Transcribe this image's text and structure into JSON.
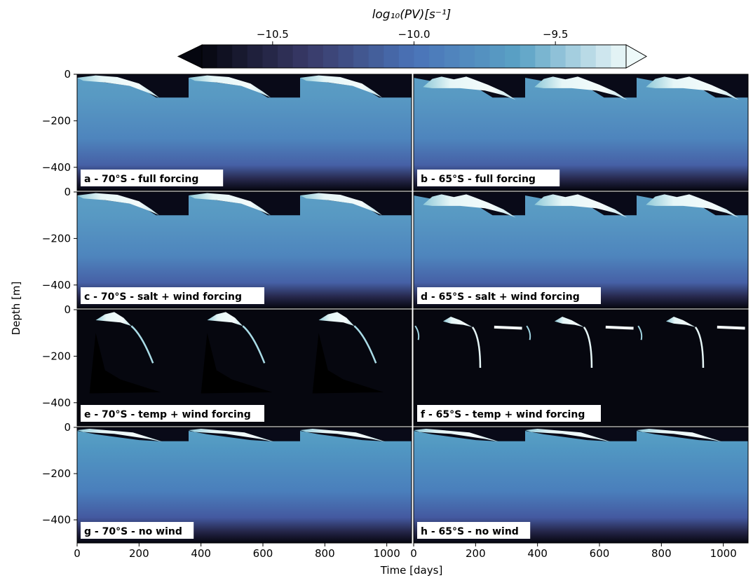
{
  "chart_data": {
    "type": "heatmap",
    "colorbar": {
      "label": "log₁₀(PV)[s⁻¹]",
      "range": [
        -10.75,
        -9.25
      ],
      "extend": "both",
      "ticks": [
        -10.5,
        -10.0,
        -9.5
      ],
      "tick_labels": [
        "−10.5",
        "−10.0",
        "−9.5"
      ],
      "colors": [
        "#05060f",
        "#393a68",
        "#4a73b8",
        "#5aa2c5",
        "#eef9f9"
      ]
    },
    "xlabel": "Time [days]",
    "ylabel": "Depth [m]",
    "xlim": [
      0,
      1080
    ],
    "ylim": [
      -500,
      0
    ],
    "xticks": [
      0,
      200,
      400,
      600,
      800,
      1000
    ],
    "xtick_labels": [
      "0",
      "200",
      "400",
      "600",
      "800",
      "1000"
    ],
    "yticks": [
      0,
      -200,
      -400
    ],
    "ytick_labels": [
      "0",
      "−200",
      "−400"
    ],
    "panels": [
      {
        "label": "a - 70°S - full forcing",
        "latitude": "70°S",
        "forcing": "full",
        "mode": "full",
        "lat": 70
      },
      {
        "label": "b - 65°S - full forcing",
        "latitude": "65°S",
        "forcing": "full",
        "mode": "full",
        "lat": 65
      },
      {
        "label": "c - 70°S - salt + wind forcing",
        "latitude": "70°S",
        "forcing": "salt + wind",
        "mode": "salt",
        "lat": 70
      },
      {
        "label": "d - 65°S - salt + wind forcing",
        "latitude": "65°S",
        "forcing": "salt + wind",
        "mode": "salt",
        "lat": 65
      },
      {
        "label": "e - 70°S - temp + wind forcing",
        "latitude": "70°S",
        "forcing": "temp + wind",
        "mode": "temp",
        "lat": 70
      },
      {
        "label": "f - 65°S - temp + wind forcing",
        "latitude": "65°S",
        "forcing": "temp + wind",
        "mode": "temp",
        "lat": 65
      },
      {
        "label": "g - 70°S - no wind",
        "latitude": "70°S",
        "forcing": "no wind",
        "mode": "nowind",
        "lat": 70
      },
      {
        "label": "h - 65°S - no wind",
        "latitude": "65°S",
        "forcing": "no wind",
        "mode": "nowind",
        "lat": 65
      }
    ]
  }
}
